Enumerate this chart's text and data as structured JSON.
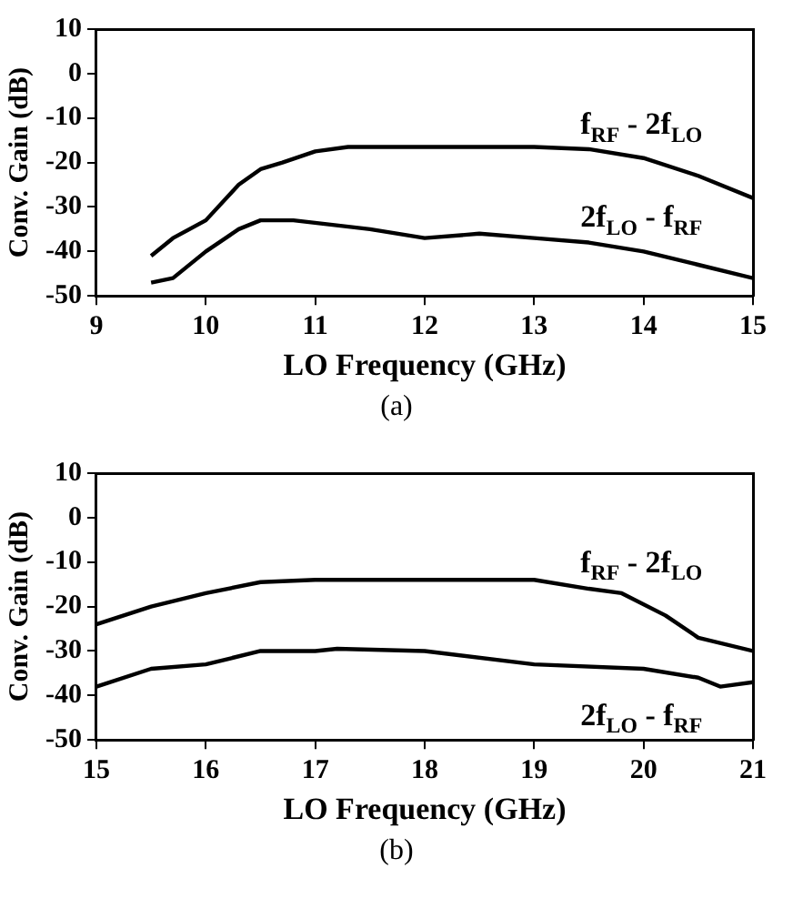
{
  "chart_data": [
    {
      "type": "line",
      "xlabel": "LO Frequency (GHz)",
      "ylabel": "Conv. Gain (dB)",
      "annotations": [
        "(a)"
      ],
      "xlim": [
        9,
        15
      ],
      "xticks": [
        9,
        10,
        11,
        12,
        13,
        14,
        15
      ],
      "ylim": [
        -50,
        10
      ],
      "yticks": [
        -50,
        -40,
        -30,
        -20,
        -10,
        0,
        10
      ],
      "grid": false,
      "legend": false,
      "marker": "none",
      "series": [
        {
          "name": "f$_{RF}$ - 2f$_{LO}$",
          "color": "#000000",
          "x": [
            9.5,
            9.7,
            10,
            10.3,
            10.5,
            10.7,
            11,
            11.3,
            12,
            13,
            13.5,
            14,
            14.5,
            15
          ],
          "values": [
            -41,
            -37,
            -33,
            -25,
            -21.5,
            -20,
            -17.5,
            -16.5,
            -16.5,
            -16.5,
            -17,
            -19,
            -23,
            -28
          ]
        },
        {
          "name": "2f$_{LO}$ - f$_{RF}$",
          "color": "#000000",
          "x": [
            9.5,
            9.7,
            10,
            10.3,
            10.5,
            10.8,
            11.5,
            12,
            12.5,
            13,
            13.5,
            14,
            14.5,
            15
          ],
          "values": [
            -47,
            -46,
            -40,
            -35,
            -33,
            -33,
            -35,
            -37,
            -36,
            -37,
            -38,
            -40,
            -43,
            -46
          ]
        }
      ]
    },
    {
      "type": "line",
      "xlabel": "LO Frequency (GHz)",
      "ylabel": "Conv. Gain (dB)",
      "annotations": [
        "(b)"
      ],
      "xlim": [
        15,
        21
      ],
      "xticks": [
        15,
        16,
        17,
        18,
        19,
        20,
        21
      ],
      "ylim": [
        -50,
        10
      ],
      "yticks": [
        -50,
        -40,
        -30,
        -20,
        -10,
        0,
        10
      ],
      "grid": false,
      "legend": false,
      "marker": "none",
      "series": [
        {
          "name": "f$_{RF}$ - 2f$_{LO}$",
          "color": "#000000",
          "x": [
            15,
            15.5,
            16,
            16.5,
            17,
            18,
            19,
            19.5,
            19.8,
            20.2,
            20.5,
            21
          ],
          "values": [
            -24,
            -20,
            -17,
            -14.5,
            -14,
            -14,
            -14,
            -16,
            -17,
            -22,
            -27,
            -30
          ]
        },
        {
          "name": "2f$_{LO}$ - f$_{RF}$",
          "color": "#000000",
          "x": [
            15,
            15.5,
            16,
            16.5,
            17,
            17.2,
            18,
            19,
            20,
            20.5,
            20.7,
            21
          ],
          "values": [
            -38,
            -34,
            -33,
            -30,
            -30,
            -29.5,
            -30,
            -33,
            -34,
            -36,
            -38,
            -37
          ]
        }
      ]
    }
  ]
}
